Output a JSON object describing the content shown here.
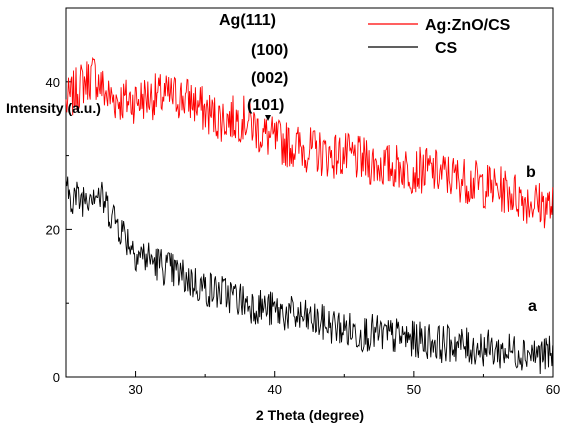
{
  "chart_data": {
    "type": "line",
    "xlabel": "2 Theta (degree)",
    "ylabel": "Intensity (a.u.)",
    "xlim": [
      25,
      60
    ],
    "ylim": [
      0,
      50
    ],
    "xticks": [
      30,
      40,
      50,
      60
    ],
    "yticks": [
      0,
      20,
      40
    ],
    "legend_position": "top-right",
    "grid": false,
    "series": [
      {
        "name": "Ag:ZnO/CS",
        "color": "#ff0000",
        "x": [
          25,
          26,
          27,
          28,
          29,
          30,
          31,
          32,
          33,
          34,
          35,
          36,
          37,
          38,
          39,
          40,
          41,
          42,
          43,
          44,
          45,
          46,
          47,
          48,
          49,
          50,
          51,
          52,
          53,
          54,
          55,
          56,
          57,
          58,
          59,
          60
        ],
        "y": [
          37,
          39.5,
          41,
          38,
          37.5,
          37.5,
          38,
          38,
          38,
          37.5,
          36,
          35,
          35,
          35,
          33,
          32,
          31.5,
          31,
          30.5,
          30,
          30,
          29.5,
          29,
          28.5,
          28.5,
          28,
          28,
          27.5,
          27,
          26.5,
          26,
          25.5,
          25,
          24,
          23.5,
          23
        ]
      },
      {
        "name": "CS",
        "color": "#000000",
        "x": [
          25,
          26,
          27,
          28,
          29,
          30,
          31,
          32,
          33,
          34,
          35,
          36,
          37,
          38,
          39,
          40,
          41,
          42,
          43,
          44,
          45,
          46,
          47,
          48,
          49,
          50,
          51,
          52,
          53,
          54,
          55,
          56,
          57,
          58,
          59,
          60
        ],
        "y": [
          25,
          24,
          25.5,
          23,
          20,
          17,
          16,
          15,
          14,
          13,
          12,
          11.5,
          11,
          10,
          9.5,
          9,
          8.5,
          8,
          7.5,
          7,
          6.5,
          6,
          6,
          5.5,
          5.5,
          5,
          5,
          4.5,
          4.5,
          4,
          4,
          3.5,
          3.5,
          3.5,
          3,
          3
        ]
      }
    ],
    "annotations": {
      "peak_labels": [
        "Ag(111)",
        "(100)",
        "(002)",
        "(101)"
      ],
      "curve_label_a": "a",
      "curve_label_b": "b"
    }
  }
}
